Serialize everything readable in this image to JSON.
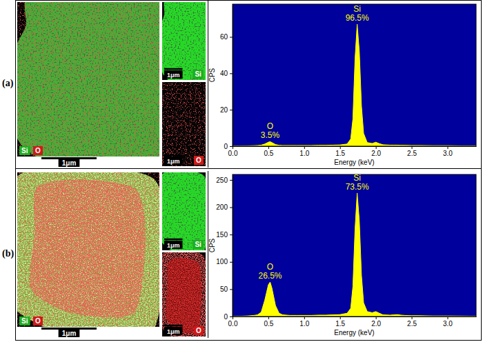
{
  "panels": [
    {
      "label": "(a)",
      "composite": {
        "element_labels": [
          "Si",
          "O"
        ],
        "scale_bar": "1μm"
      },
      "maps": [
        {
          "element": "Si",
          "scale_bar": "1μm"
        },
        {
          "element": "O",
          "scale_bar": "1μm"
        }
      ]
    },
    {
      "label": "(b)",
      "composite": {
        "element_labels": [
          "Si",
          "O"
        ],
        "scale_bar": "1μm"
      },
      "maps": [
        {
          "element": "Si",
          "scale_bar": "1μm"
        },
        {
          "element": "O",
          "scale_bar": "1μm"
        }
      ]
    }
  ],
  "chart_data": [
    {
      "type": "area",
      "x_label": "Energy (keV)",
      "y_label": "CPS",
      "color": "#ffff00",
      "x": [
        0.0,
        0.1,
        0.2,
        0.3,
        0.35,
        0.4,
        0.45,
        0.5,
        0.525,
        0.55,
        0.6,
        0.65,
        0.7,
        0.8,
        0.9,
        1.0,
        1.1,
        1.2,
        1.3,
        1.4,
        1.5,
        1.6,
        1.65,
        1.68,
        1.71,
        1.74,
        1.77,
        1.8,
        1.83,
        1.88,
        1.95,
        2.0,
        2.05,
        2.1,
        2.2,
        2.25,
        2.3,
        2.35,
        2.4,
        2.5,
        2.6,
        2.8,
        3.0,
        3.2,
        3.4
      ],
      "values": [
        0,
        0.1,
        0.2,
        0.3,
        0.4,
        0.6,
        1.2,
        2.2,
        2.5,
        2.0,
        0.9,
        0.5,
        0.4,
        0.4,
        0.4,
        0.4,
        0.4,
        0.5,
        0.5,
        0.6,
        0.7,
        1.2,
        4,
        15,
        48,
        67,
        52,
        22,
        7,
        2,
        1.5,
        2.2,
        1.4,
        0.8,
        0.6,
        0.6,
        0.6,
        0.5,
        0.5,
        0.4,
        0.4,
        0.3,
        0.3,
        0.2,
        0.2
      ],
      "xlim": [
        0,
        3.4
      ],
      "ylim": [
        0,
        78
      ],
      "xticks": [
        {
          "value": 0,
          "label": "0.0"
        },
        0.5,
        {
          "value": 1,
          "label": "1.0"
        },
        1.5,
        {
          "value": 2,
          "label": "2.0"
        },
        2.5,
        {
          "value": 3,
          "label": "3.0"
        }
      ],
      "yticks": [
        0,
        20,
        40,
        60
      ],
      "annotations": [
        {
          "x": 1.74,
          "lines": [
            "Si",
            "96.5%"
          ]
        },
        {
          "x": 0.525,
          "lines": [
            "O",
            "3.5%"
          ]
        }
      ]
    },
    {
      "type": "area",
      "x_label": "Energy (keV)",
      "y_label": "CPS",
      "color": "#ffff00",
      "x": [
        0.0,
        0.1,
        0.2,
        0.3,
        0.35,
        0.4,
        0.45,
        0.5,
        0.525,
        0.55,
        0.6,
        0.65,
        0.7,
        0.8,
        0.9,
        1.0,
        1.1,
        1.2,
        1.3,
        1.4,
        1.5,
        1.6,
        1.65,
        1.68,
        1.71,
        1.74,
        1.77,
        1.8,
        1.83,
        1.88,
        1.95,
        2.0,
        2.05,
        2.1,
        2.2,
        2.25,
        2.3,
        2.35,
        2.4,
        2.5,
        2.6,
        2.8,
        3.0,
        3.2,
        3.4
      ],
      "values": [
        0,
        0.5,
        1,
        2,
        3,
        8,
        30,
        58,
        63,
        52,
        20,
        6,
        3,
        2,
        2,
        2,
        2,
        2.5,
        2.5,
        3,
        3.5,
        6,
        15,
        55,
        160,
        226,
        175,
        75,
        25,
        9,
        7,
        9,
        6,
        3,
        2.5,
        3,
        3.5,
        2.5,
        2,
        1.5,
        1.5,
        1,
        1,
        0.8,
        0.5
      ],
      "xlim": [
        0,
        3.4
      ],
      "ylim": [
        0,
        260
      ],
      "xticks": [
        {
          "value": 0,
          "label": "0.0"
        },
        0.5,
        {
          "value": 1,
          "label": "1.0"
        },
        1.5,
        {
          "value": 2,
          "label": "2.0"
        },
        2.5,
        {
          "value": 3,
          "label": "3.0"
        }
      ],
      "yticks": [
        0,
        50,
        100,
        150,
        200,
        250
      ],
      "annotations": [
        {
          "x": 1.74,
          "lines": [
            "Si",
            "73.5%"
          ]
        },
        {
          "x": 0.525,
          "lines": [
            "O",
            "26.5%"
          ]
        }
      ]
    }
  ]
}
